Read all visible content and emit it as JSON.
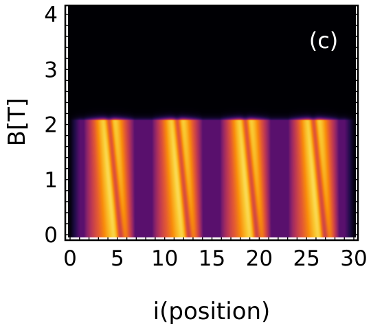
{
  "chart_data": {
    "type": "heatmap",
    "title": "",
    "panel_label": "(c)",
    "xlabel": "i(position)",
    "ylabel": "B[T]",
    "xlim": [
      0,
      30
    ],
    "ylim": [
      0,
      4.1
    ],
    "x_ticks": [
      0,
      5,
      10,
      15,
      20,
      25,
      30
    ],
    "y_ticks": [
      0,
      1,
      2,
      3,
      4
    ],
    "x_tick_labels": [
      "0",
      "5",
      "10",
      "15",
      "20",
      "25",
      "30"
    ],
    "y_tick_labels": [
      "0",
      "1",
      "2",
      "3",
      "4"
    ],
    "colormap": "inferno",
    "cutoff_field_T": 2.13,
    "bands": [
      {
        "x_start": 1.2,
        "x_end": 7.0
      },
      {
        "x_start": 8.4,
        "x_end": 14.2
      },
      {
        "x_start": 15.6,
        "x_end": 21.4
      },
      {
        "x_start": 22.8,
        "x_end": 28.6
      }
    ],
    "grid": false,
    "legend": "none"
  }
}
